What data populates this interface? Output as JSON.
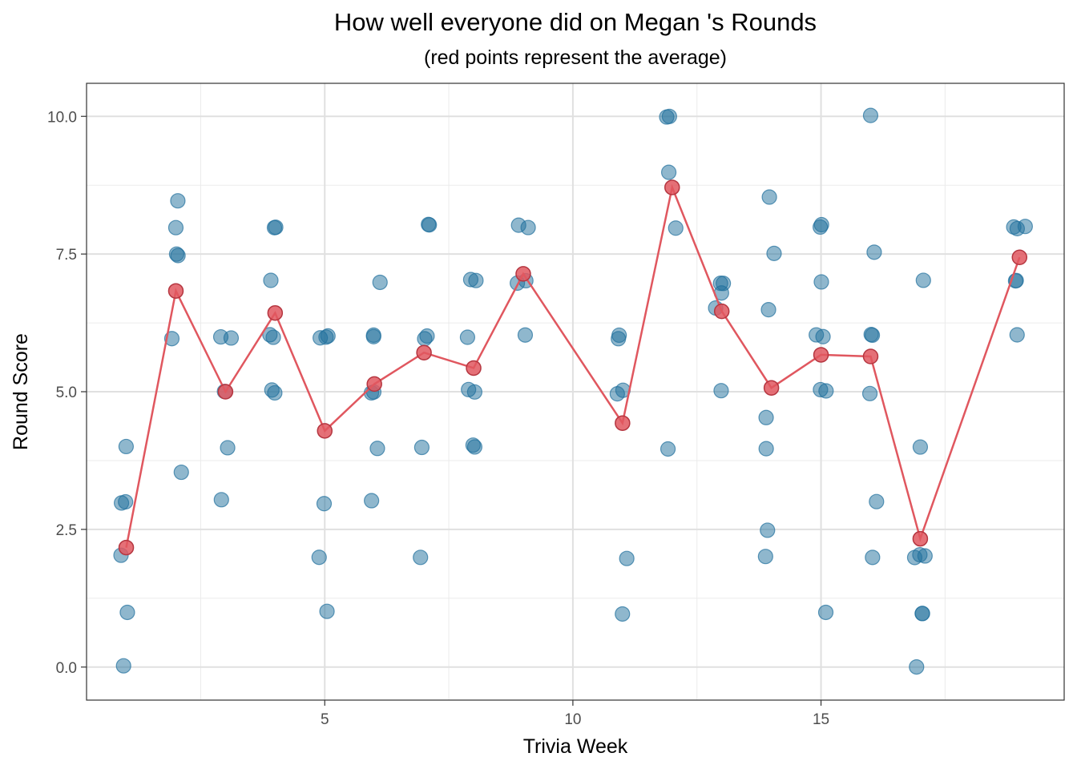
{
  "chart_data": {
    "type": "scatter",
    "title": "How well everyone did on Megan 's Rounds",
    "subtitle": "(red points represent the average)",
    "xlabel": "Trivia Week",
    "ylabel": "Round Score",
    "xlim": [
      0.2,
      19.9
    ],
    "ylim": [
      -0.6,
      10.6
    ],
    "x_ticks": [
      5,
      10,
      15
    ],
    "x_tick_labels": [
      "5",
      "10",
      "15"
    ],
    "y_ticks": [
      0,
      2.5,
      5,
      7.5,
      10
    ],
    "y_tick_labels": [
      "0.0",
      "2.5",
      "5.0",
      "7.5",
      "10.0"
    ],
    "grid": true,
    "theme": "bw",
    "colors": {
      "points": "#1f6f9c",
      "average": "#e0575f",
      "average_dark": "#b53640",
      "grid": "#ebebeb",
      "grid_major": "#e0e0e0"
    },
    "series": [
      {
        "role": "scores",
        "points": [
          [
            1,
            4.0
          ],
          [
            1,
            3.0
          ],
          [
            1,
            3.0
          ],
          [
            1,
            2.0
          ],
          [
            1,
            1.0
          ],
          [
            1,
            0.0
          ],
          [
            2,
            8.5
          ],
          [
            2,
            8.0
          ],
          [
            2,
            7.5
          ],
          [
            2,
            7.5
          ],
          [
            2,
            6.0
          ],
          [
            2,
            3.5
          ],
          [
            3,
            6.0
          ],
          [
            3,
            6.0
          ],
          [
            3,
            5.0
          ],
          [
            3,
            4.0
          ],
          [
            3,
            3.0
          ],
          [
            4,
            8.0
          ],
          [
            4,
            8.0
          ],
          [
            4,
            7.0
          ],
          [
            4,
            6.0
          ],
          [
            4,
            6.0
          ],
          [
            4,
            5.0
          ],
          [
            4,
            5.0
          ],
          [
            5,
            6.0
          ],
          [
            5,
            6.0
          ],
          [
            5,
            6.0
          ],
          [
            5,
            3.0
          ],
          [
            5,
            2.0
          ],
          [
            5,
            1.0
          ],
          [
            6,
            7.0
          ],
          [
            6,
            6.0
          ],
          [
            6,
            6.0
          ],
          [
            6,
            5.0
          ],
          [
            6,
            5.0
          ],
          [
            6,
            4.0
          ],
          [
            6,
            3.0
          ],
          [
            7,
            8.0
          ],
          [
            7,
            8.0
          ],
          [
            7,
            6.0
          ],
          [
            7,
            6.0
          ],
          [
            7,
            4.0
          ],
          [
            7,
            2.0
          ],
          [
            8,
            7.0
          ],
          [
            8,
            7.0
          ],
          [
            8,
            6.0
          ],
          [
            8,
            5.0
          ],
          [
            8,
            5.0
          ],
          [
            8,
            4.0
          ],
          [
            8,
            4.0
          ],
          [
            9,
            8.0
          ],
          [
            9,
            8.0
          ],
          [
            9,
            7.0
          ],
          [
            9,
            7.0
          ],
          [
            9,
            6.0
          ],
          [
            11,
            6.0
          ],
          [
            11,
            6.0
          ],
          [
            11,
            5.0
          ],
          [
            11,
            5.0
          ],
          [
            11,
            2.0
          ],
          [
            11,
            1.0
          ],
          [
            12,
            10.0
          ],
          [
            12,
            10.0
          ],
          [
            12,
            9.0
          ],
          [
            12,
            8.0
          ],
          [
            12,
            4.0
          ],
          [
            13,
            7.0
          ],
          [
            13,
            7.0
          ],
          [
            13,
            6.8
          ],
          [
            13,
            6.5
          ],
          [
            13,
            5.0
          ],
          [
            14,
            8.5
          ],
          [
            14,
            7.5
          ],
          [
            14,
            6.5
          ],
          [
            14,
            4.5
          ],
          [
            14,
            4.0
          ],
          [
            14,
            2.5
          ],
          [
            14,
            2.0
          ],
          [
            15,
            8.0
          ],
          [
            15,
            8.0
          ],
          [
            15,
            7.0
          ],
          [
            15,
            6.0
          ],
          [
            15,
            6.0
          ],
          [
            15,
            5.0
          ],
          [
            15,
            5.0
          ],
          [
            15,
            1.0
          ],
          [
            16,
            10.0
          ],
          [
            16,
            7.5
          ],
          [
            16,
            6.0
          ],
          [
            16,
            6.0
          ],
          [
            16,
            5.0
          ],
          [
            16,
            3.0
          ],
          [
            16,
            2.0
          ],
          [
            17,
            7.0
          ],
          [
            17,
            4.0
          ],
          [
            17,
            2.0
          ],
          [
            17,
            2.0
          ],
          [
            17,
            2.0
          ],
          [
            17,
            1.0
          ],
          [
            17,
            1.0
          ],
          [
            17,
            0.0
          ],
          [
            19,
            8.0
          ],
          [
            19,
            8.0
          ],
          [
            19,
            8.0
          ],
          [
            19,
            7.0
          ],
          [
            19,
            7.0
          ],
          [
            19,
            6.0
          ]
        ]
      },
      {
        "role": "average",
        "x": [
          1,
          2,
          3,
          4,
          5,
          6,
          7,
          8,
          9,
          11,
          12,
          13,
          14,
          15,
          16,
          17,
          19
        ],
        "y": [
          2.17,
          6.83,
          5.0,
          6.43,
          4.29,
          5.14,
          5.71,
          5.43,
          7.14,
          4.43,
          8.71,
          6.46,
          5.07,
          5.67,
          5.64,
          2.33,
          7.44
        ]
      }
    ]
  }
}
